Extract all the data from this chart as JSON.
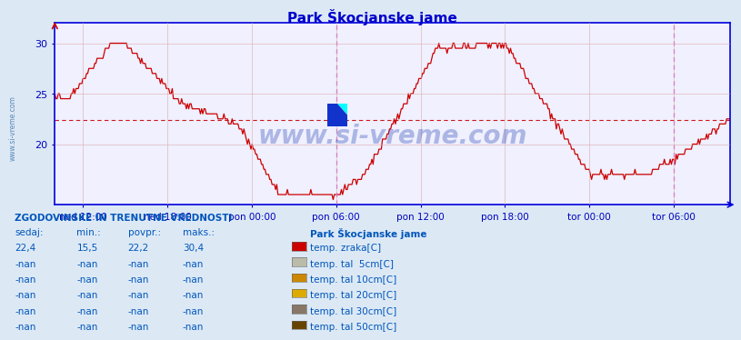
{
  "title": "Park Škocjanske jame",
  "title_color": "#0000cc",
  "bg_color": "#dce9f5",
  "plot_bg_color": "#f0f0ff",
  "grid_color": "#ddaaaa",
  "axis_color": "#0000dd",
  "tick_color": "#0000bb",
  "ylim_min": 14,
  "ylim_max": 32,
  "yticks": [
    20,
    25,
    30
  ],
  "xlabels": [
    "ned 12:00",
    "ned 18:00",
    "pon 00:00",
    "pon 06:00",
    "pon 12:00",
    "pon 18:00",
    "tor 00:00",
    "tor 06:00"
  ],
  "line_color": "#cc0000",
  "avg_value": 22.4,
  "avg_line_color": "#cc0000",
  "vline_color": "#cc55cc",
  "watermark": "www.si-vreme.com",
  "watermark_color": "#1133aa",
  "sidebar_text": "www.si-vreme.com",
  "sidebar_color": "#4477aa",
  "legend_title": "Park Škocjanske jame",
  "legend_items": [
    {
      "label": "temp. zraka[C]",
      "color": "#cc0000"
    },
    {
      "label": "temp. tal  5cm[C]",
      "color": "#bbbbaa"
    },
    {
      "label": "temp. tal 10cm[C]",
      "color": "#cc8800"
    },
    {
      "label": "temp. tal 20cm[C]",
      "color": "#ddaa00"
    },
    {
      "label": "temp. tal 30cm[C]",
      "color": "#887766"
    },
    {
      "label": "temp. tal 50cm[C]",
      "color": "#664400"
    }
  ],
  "table_header": "ZGODOVINSKE IN TRENUTNE VREDNOSTI",
  "table_cols": [
    "sedaj:",
    "min.:",
    "povpr.:",
    "maks.:"
  ],
  "table_rows": [
    [
      "22,4",
      "15,5",
      "22,2",
      "30,4"
    ],
    [
      "-nan",
      "-nan",
      "-nan",
      "-nan"
    ],
    [
      "-nan",
      "-nan",
      "-nan",
      "-nan"
    ],
    [
      "-nan",
      "-nan",
      "-nan",
      "-nan"
    ],
    [
      "-nan",
      "-nan",
      "-nan",
      "-nan"
    ],
    [
      "-nan",
      "-nan",
      "-nan",
      "-nan"
    ]
  ],
  "table_color": "#0055bb"
}
